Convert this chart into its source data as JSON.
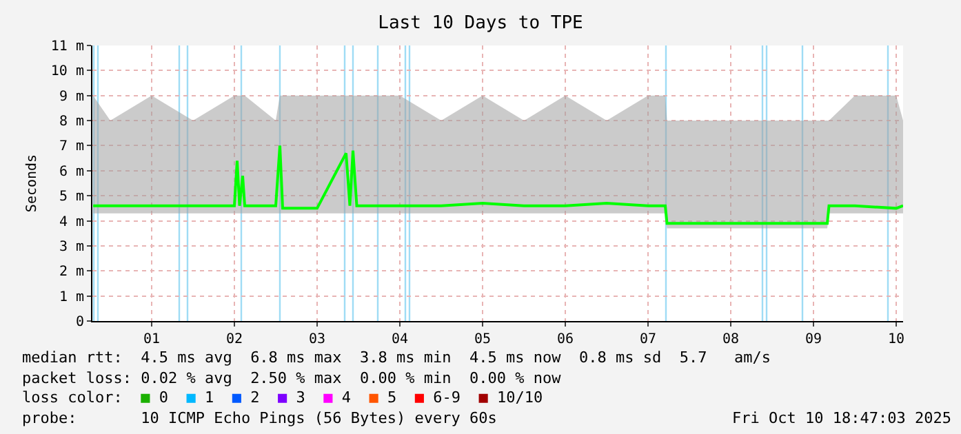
{
  "chart_data": {
    "type": "line",
    "title": "Last 10 Days to TPE",
    "ylabel": "Seconds",
    "xlim": [
      "2025-09-30T18:48",
      "2025-10-10T14:00"
    ],
    "xticks": [
      {
        "value": "2025-10-01T12:00",
        "label": "01"
      },
      {
        "value": "2025-10-02T12:00",
        "label": "02"
      },
      {
        "value": "2025-10-03T12:00",
        "label": "03"
      },
      {
        "value": "2025-10-04T12:00",
        "label": "04"
      },
      {
        "value": "2025-10-05T12:00",
        "label": "05"
      },
      {
        "value": "2025-10-06T12:00",
        "label": "06"
      },
      {
        "value": "2025-10-07T12:00",
        "label": "07"
      },
      {
        "value": "2025-10-08T12:00",
        "label": "08"
      },
      {
        "value": "2025-10-09T12:00",
        "label": "09"
      },
      {
        "value": "2025-10-10T12:00",
        "label": "10"
      }
    ],
    "ylim": [
      0,
      11
    ],
    "yticks": [
      0,
      {
        "value": 1,
        "label": "1 m"
      },
      {
        "value": 2,
        "label": "2 m"
      },
      {
        "value": 3,
        "label": "3 m"
      },
      {
        "value": 4,
        "label": "4 m"
      },
      {
        "value": 5,
        "label": "5 m"
      },
      {
        "value": 6,
        "label": "6 m"
      },
      {
        "value": 7,
        "label": "7 m"
      },
      {
        "value": 8,
        "label": "8 m"
      },
      {
        "value": 9,
        "label": "9 m"
      },
      {
        "value": 10,
        "label": "10 m"
      },
      {
        "value": 11,
        "label": "11 m"
      }
    ],
    "grid": true,
    "marker": "none",
    "line_style": "solid",
    "series": [
      {
        "color": "#00ff00",
        "x": [
          "2025-09-30T19:00",
          "2025-10-01T00:00",
          "2025-10-01T12:00",
          "2025-10-02T00:00",
          "2025-10-02T12:00",
          "2025-10-02T12:48",
          "2025-10-02T13:30",
          "2025-10-02T14:24",
          "2025-10-02T15:00",
          "2025-10-03T00:00",
          "2025-10-03T01:12",
          "2025-10-03T02:00",
          "2025-10-03T12:00",
          "2025-10-03T20:24",
          "2025-10-03T21:30",
          "2025-10-03T22:24",
          "2025-10-03T23:30",
          "2025-10-04T12:00",
          "2025-10-05T00:00",
          "2025-10-05T12:00",
          "2025-10-06T00:00",
          "2025-10-06T12:00",
          "2025-10-07T00:00",
          "2025-10-07T12:00",
          "2025-10-07T17:00",
          "2025-10-07T17:30",
          "2025-10-08T00:00",
          "2025-10-08T12:00",
          "2025-10-09T00:00",
          "2025-10-09T12:00",
          "2025-10-09T16:00",
          "2025-10-09T16:30",
          "2025-10-10T00:00",
          "2025-10-10T12:00",
          "2025-10-10T14:00"
        ],
        "values": [
          4.6,
          4.6,
          4.6,
          4.6,
          4.6,
          6.4,
          4.6,
          5.8,
          4.6,
          4.6,
          7.0,
          4.5,
          4.5,
          6.7,
          4.6,
          6.8,
          4.6,
          4.6,
          4.6,
          4.7,
          4.6,
          4.6,
          4.7,
          4.6,
          4.6,
          3.9,
          3.9,
          3.9,
          3.9,
          3.9,
          3.9,
          4.6,
          4.6,
          4.5,
          4.6
        ],
        "lower": [
          4.3,
          4.3,
          4.3,
          4.3,
          4.3,
          4.3,
          4.3,
          4.3,
          4.3,
          4.3,
          4.3,
          4.3,
          4.3,
          4.3,
          4.3,
          4.3,
          4.3,
          4.3,
          4.3,
          4.3,
          4.3,
          4.3,
          4.3,
          4.3,
          4.3,
          3.7,
          3.7,
          3.7,
          3.7,
          3.7,
          3.7,
          4.3,
          4.3,
          4.3,
          4.3
        ],
        "upper": [
          9,
          8,
          9,
          8,
          9,
          9,
          9,
          9,
          9,
          8,
          9,
          9,
          9,
          9,
          9,
          9,
          9,
          9,
          8,
          9,
          8,
          9,
          8,
          9,
          9,
          8,
          8,
          8,
          8,
          8,
          8,
          8,
          9,
          9,
          8
        ]
      }
    ],
    "ref_lines": [
      {
        "axis": "x",
        "value": "2025-09-30T19:12",
        "color": "#9fdcf5"
      },
      {
        "axis": "x",
        "value": "2025-09-30T20:24",
        "color": "#9fdcf5"
      },
      {
        "axis": "x",
        "value": "2025-10-01T20:00",
        "color": "#9fdcf5"
      },
      {
        "axis": "x",
        "value": "2025-10-01T22:24",
        "color": "#9fdcf5"
      },
      {
        "axis": "x",
        "value": "2025-10-02T14:00",
        "color": "#9fdcf5"
      },
      {
        "axis": "x",
        "value": "2025-10-03T01:12",
        "color": "#9fdcf5"
      },
      {
        "axis": "x",
        "value": "2025-10-03T20:00",
        "color": "#9fdcf5"
      },
      {
        "axis": "x",
        "value": "2025-10-03T22:24",
        "color": "#9fdcf5"
      },
      {
        "axis": "x",
        "value": "2025-10-04T05:36",
        "color": "#9fdcf5"
      },
      {
        "axis": "x",
        "value": "2025-10-04T13:36",
        "color": "#9fdcf5"
      },
      {
        "axis": "x",
        "value": "2025-10-04T14:48",
        "color": "#9fdcf5"
      },
      {
        "axis": "x",
        "value": "2025-10-07T17:12",
        "color": "#9fdcf5"
      },
      {
        "axis": "x",
        "value": "2025-10-08T21:12",
        "color": "#9fdcf5"
      },
      {
        "axis": "x",
        "value": "2025-10-08T22:24",
        "color": "#9fdcf5"
      },
      {
        "axis": "x",
        "value": "2025-10-09T08:48",
        "color": "#9fdcf5"
      },
      {
        "axis": "x",
        "value": "2025-10-10T09:36",
        "color": "#9fdcf5"
      }
    ],
    "annotations": [
      "median rtt:  4.5 ms avg  6.8 ms max  3.8 ms min  4.5 ms now  0.8 ms sd  5.7   am/s",
      "packet loss: 0.02 % avg  2.50 % max  0.00 % min  0.00 % now",
      "loss color:  ■ 0  ■ 1  ■ 2  ■ 3  ■ 4  ■ 5  ■ 6-9  ■ 10/10",
      "probe:       10 ICMP Echo Pings (56 Bytes) every 60s",
      "Fri Oct 10 18:47:03 2025"
    ]
  }
}
